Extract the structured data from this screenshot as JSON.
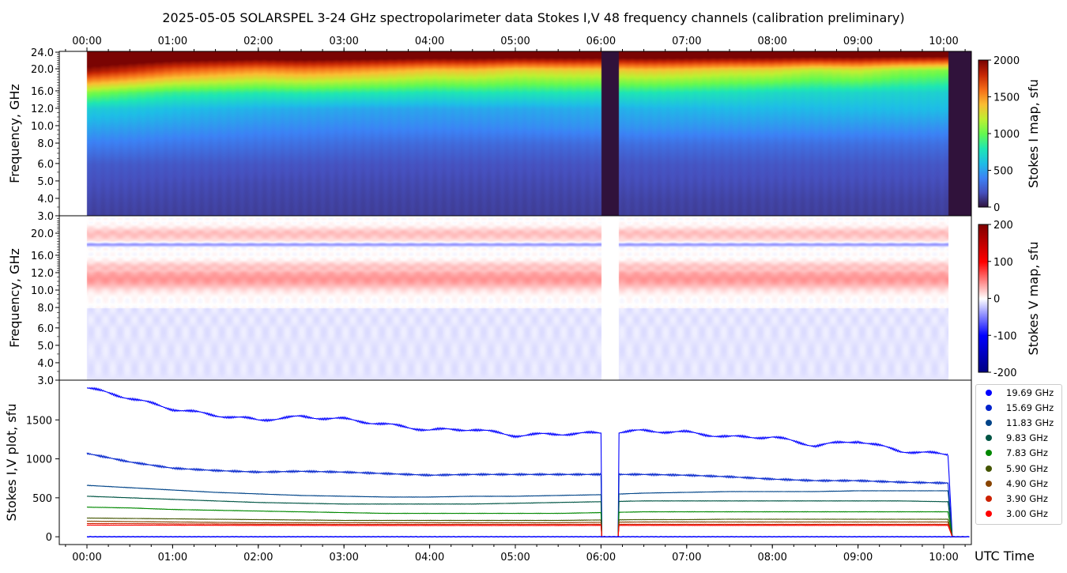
{
  "title": "2025-05-05  SOLARSPEL  3-24 GHz spectropolarimeter data   Stokes I,V   48 frequency channels   (calibration preliminary)",
  "chart_data": [
    {
      "type": "heatmap",
      "name": "Stokes I map",
      "ylabel": "Frequency, GHz",
      "yticks": [
        "3.0",
        "4.0",
        "5.0",
        "6.0",
        "8.0",
        "10.0",
        "12.0",
        "16.0",
        "20.0",
        "24.0"
      ],
      "ylim": [
        3,
        24
      ],
      "colorbar_label": "Stokes I map, sfu",
      "colorbar_ticks": [
        "0",
        "500",
        "1000",
        "1500",
        "2000"
      ],
      "clim": [
        0,
        2000
      ],
      "top_xticks": [
        "00:00",
        "01:00",
        "02:00",
        "03:00",
        "04:00",
        "05:00",
        "06:00",
        "07:00",
        "08:00",
        "09:00",
        "10:00"
      ]
    },
    {
      "type": "heatmap",
      "name": "Stokes V map",
      "ylabel": "Frequency, GHz",
      "yticks": [
        "3.0",
        "4.0",
        "5.0",
        "6.0",
        "8.0",
        "10.0",
        "12.0",
        "16.0",
        "20.0"
      ],
      "ylim": [
        3,
        24
      ],
      "colorbar_label": "Stokes V map, sfu",
      "colorbar_ticks": [
        "-200",
        "-100",
        "0",
        "100",
        "200"
      ],
      "clim": [
        -200,
        200
      ]
    },
    {
      "type": "line",
      "name": "Stokes I,V plot",
      "ylabel": "Stokes I,V plot, sfu",
      "xlabel": "UTC Time",
      "yticks": [
        "0",
        "500",
        "1000",
        "1500"
      ],
      "ylim": [
        -100,
        2010
      ],
      "xlim_hours": [
        -0.32,
        10.32
      ],
      "xticks": [
        "00:00",
        "01:00",
        "02:00",
        "03:00",
        "04:00",
        "05:00",
        "06:00",
        "07:00",
        "08:00",
        "09:00",
        "10:00"
      ],
      "x_hours": [
        0,
        0.5,
        1,
        1.5,
        2,
        2.5,
        3,
        3.5,
        4,
        4.5,
        5,
        5.5,
        6,
        6.5,
        7,
        7.5,
        8,
        8.5,
        9,
        9.5,
        10
      ],
      "data_gap_hours": [
        6.0,
        6.2
      ],
      "data_end_hour": 10.05,
      "legend_position": "right",
      "series": [
        {
          "name": "19.69 GHz",
          "freq": 19.69,
          "color": "#0000ff",
          "values": [
            1910,
            1780,
            1640,
            1560,
            1500,
            1540,
            1510,
            1440,
            1370,
            1380,
            1300,
            1320,
            1330,
            1360,
            1340,
            1280,
            1280,
            1170,
            1230,
            1100,
            1060
          ]
        },
        {
          "name": "15.69 GHz",
          "freq": 15.69,
          "color": "#0022cc",
          "values": [
            1070,
            960,
            880,
            850,
            830,
            840,
            830,
            810,
            790,
            800,
            800,
            800,
            800,
            800,
            790,
            770,
            740,
            720,
            720,
            700,
            690
          ]
        },
        {
          "name": "11.83 GHz",
          "freq": 11.83,
          "color": "#004488",
          "values": [
            660,
            630,
            600,
            570,
            550,
            530,
            520,
            510,
            510,
            520,
            520,
            530,
            540,
            560,
            570,
            580,
            580,
            580,
            590,
            590,
            590
          ]
        },
        {
          "name": "9.83 GHz",
          "freq": 9.83,
          "color": "#005544",
          "values": [
            520,
            500,
            480,
            460,
            440,
            430,
            420,
            420,
            420,
            420,
            430,
            440,
            450,
            460,
            460,
            460,
            460,
            460,
            460,
            460,
            450
          ]
        },
        {
          "name": "7.83 GHz",
          "freq": 7.83,
          "color": "#008800",
          "values": [
            380,
            370,
            350,
            340,
            330,
            320,
            310,
            300,
            300,
            300,
            300,
            300,
            310,
            320,
            320,
            320,
            320,
            320,
            320,
            320,
            320
          ]
        },
        {
          "name": "5.90 GHz",
          "freq": 5.9,
          "color": "#445500",
          "values": [
            240,
            235,
            230,
            225,
            220,
            215,
            210,
            210,
            210,
            210,
            210,
            210,
            215,
            220,
            220,
            225,
            225,
            225,
            225,
            225,
            225
          ]
        },
        {
          "name": "4.90 GHz",
          "freq": 4.9,
          "color": "#884400",
          "values": [
            200,
            195,
            190,
            185,
            180,
            180,
            180,
            180,
            180,
            180,
            180,
            180,
            185,
            190,
            190,
            190,
            190,
            190,
            190,
            190,
            190
          ]
        },
        {
          "name": "3.90 GHz",
          "freq": 3.9,
          "color": "#cc2200",
          "values": [
            170,
            168,
            165,
            163,
            160,
            160,
            158,
            158,
            158,
            158,
            158,
            158,
            160,
            160,
            160,
            160,
            160,
            160,
            160,
            160,
            160
          ]
        },
        {
          "name": "3.00 GHz",
          "freq": 3.0,
          "color": "#ff0000",
          "values": [
            150,
            149,
            148,
            147,
            146,
            146,
            145,
            145,
            145,
            145,
            145,
            145,
            146,
            146,
            146,
            146,
            146,
            146,
            146,
            146,
            146
          ]
        }
      ]
    }
  ]
}
